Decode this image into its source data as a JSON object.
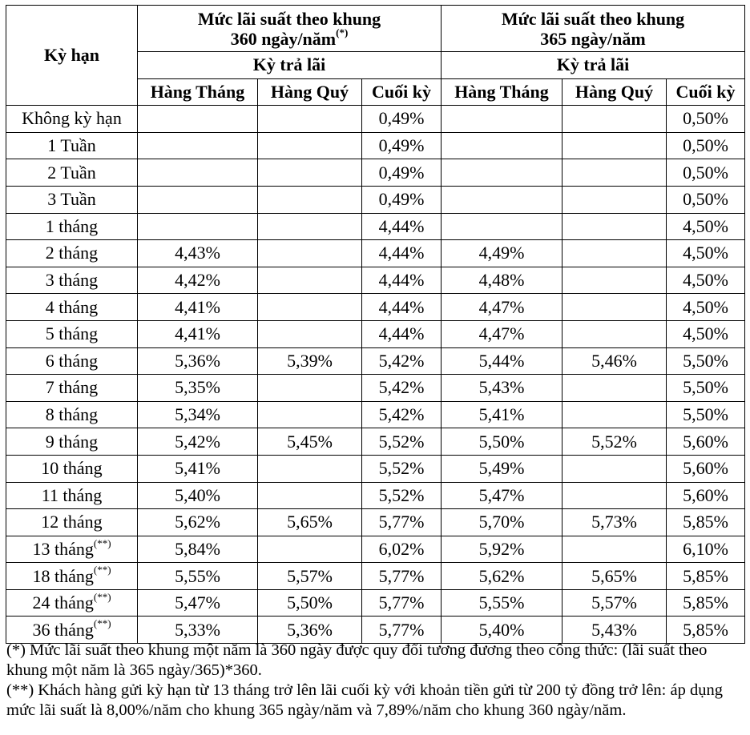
{
  "table": {
    "term_header": "Kỳ hạn",
    "group360_line1": "Mức lãi suất theo khung",
    "group360_line2": "360 ngày/năm",
    "group360_sup": "(*)",
    "group365_line1": "Mức lãi suất theo khung",
    "group365_line2": "365 ngày/năm",
    "payment_period_label": "Kỳ trả lãi",
    "sub_monthly": "Hàng Tháng",
    "sub_quarterly": "Hàng Quý",
    "sub_end": "Cuối kỳ",
    "rows": [
      {
        "term": "Không kỳ hạn",
        "sup": "",
        "m360": "",
        "q360": "",
        "e360": "0,49%",
        "m365": "",
        "q365": "",
        "e365": "0,50%"
      },
      {
        "term": "1 Tuần",
        "sup": "",
        "m360": "",
        "q360": "",
        "e360": "0,49%",
        "m365": "",
        "q365": "",
        "e365": "0,50%"
      },
      {
        "term": "2 Tuần",
        "sup": "",
        "m360": "",
        "q360": "",
        "e360": "0,49%",
        "m365": "",
        "q365": "",
        "e365": "0,50%"
      },
      {
        "term": "3 Tuần",
        "sup": "",
        "m360": "",
        "q360": "",
        "e360": "0,49%",
        "m365": "",
        "q365": "",
        "e365": "0,50%"
      },
      {
        "term": "1 tháng",
        "sup": "",
        "m360": "",
        "q360": "",
        "e360": "4,44%",
        "m365": "",
        "q365": "",
        "e365": "4,50%"
      },
      {
        "term": "2 tháng",
        "sup": "",
        "m360": "4,43%",
        "q360": "",
        "e360": "4,44%",
        "m365": "4,49%",
        "q365": "",
        "e365": "4,50%"
      },
      {
        "term": "3 tháng",
        "sup": "",
        "m360": "4,42%",
        "q360": "",
        "e360": "4,44%",
        "m365": "4,48%",
        "q365": "",
        "e365": "4,50%"
      },
      {
        "term": "4 tháng",
        "sup": "",
        "m360": "4,41%",
        "q360": "",
        "e360": "4,44%",
        "m365": "4,47%",
        "q365": "",
        "e365": "4,50%"
      },
      {
        "term": "5 tháng",
        "sup": "",
        "m360": "4,41%",
        "q360": "",
        "e360": "4,44%",
        "m365": "4,47%",
        "q365": "",
        "e365": "4,50%"
      },
      {
        "term": "6 tháng",
        "sup": "",
        "m360": "5,36%",
        "q360": "5,39%",
        "e360": "5,42%",
        "m365": "5,44%",
        "q365": "5,46%",
        "e365": "5,50%"
      },
      {
        "term": "7 tháng",
        "sup": "",
        "m360": "5,35%",
        "q360": "",
        "e360": "5,42%",
        "m365": "5,43%",
        "q365": "",
        "e365": "5,50%"
      },
      {
        "term": "8 tháng",
        "sup": "",
        "m360": "5,34%",
        "q360": "",
        "e360": "5,42%",
        "m365": "5,41%",
        "q365": "",
        "e365": "5,50%"
      },
      {
        "term": "9 tháng",
        "sup": "",
        "m360": "5,42%",
        "q360": "5,45%",
        "e360": "5,52%",
        "m365": "5,50%",
        "q365": "5,52%",
        "e365": "5,60%"
      },
      {
        "term": "10 tháng",
        "sup": "",
        "m360": "5,41%",
        "q360": "",
        "e360": "5,52%",
        "m365": "5,49%",
        "q365": "",
        "e365": "5,60%"
      },
      {
        "term": "11 tháng",
        "sup": "",
        "m360": "5,40%",
        "q360": "",
        "e360": "5,52%",
        "m365": "5,47%",
        "q365": "",
        "e365": "5,60%"
      },
      {
        "term": "12 tháng",
        "sup": "",
        "m360": "5,62%",
        "q360": "5,65%",
        "e360": "5,77%",
        "m365": "5,70%",
        "q365": "5,73%",
        "e365": "5,85%"
      },
      {
        "term": "13 tháng",
        "sup": "(**)",
        "m360": "5,84%",
        "q360": "",
        "e360": "6,02%",
        "m365": "5,92%",
        "q365": "",
        "e365": "6,10%"
      },
      {
        "term": "18 tháng",
        "sup": "(**)",
        "m360": "5,55%",
        "q360": "5,57%",
        "e360": "5,77%",
        "m365": "5,62%",
        "q365": "5,65%",
        "e365": "5,85%"
      },
      {
        "term": "24 tháng",
        "sup": "(**)",
        "m360": "5,47%",
        "q360": "5,50%",
        "e360": "5,77%",
        "m365": "5,55%",
        "q365": "5,57%",
        "e365": "5,85%"
      },
      {
        "term": "36 tháng",
        "sup": "(**)",
        "m360": "5,33%",
        "q360": "5,36%",
        "e360": "5,77%",
        "m365": "5,40%",
        "q365": "5,43%",
        "e365": "5,85%"
      }
    ]
  },
  "notes": {
    "note1": "(*) Mức lãi suất theo khung một năm là 360 ngày được quy đổi tương đương  theo công thức: (lãi suất theo khung một năm là 365 ngày/365)*360.",
    "note2": "(**) Khách hàng gửi kỳ hạn từ 13 tháng trở lên lãi cuối kỳ với khoản tiền gửi từ 200 tỷ đồng trở lên: áp dụng mức lãi suất là 8,00%/năm cho khung 365 ngày/năm và 7,89%/năm cho khung 360 ngày/năm."
  }
}
